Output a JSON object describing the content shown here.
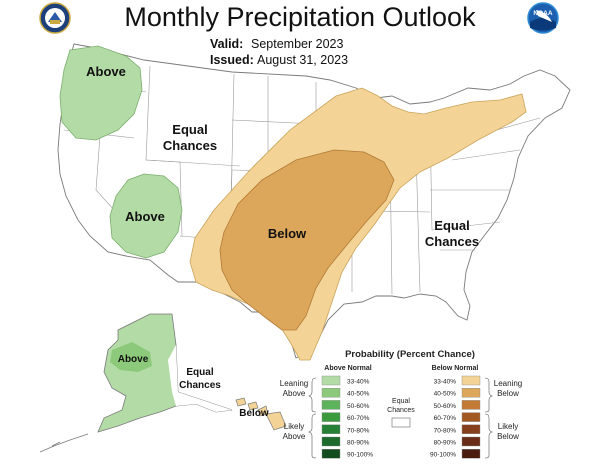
{
  "title": "Monthly Precipitation Outlook",
  "valid_label": "Valid:",
  "valid_value": "September 2023",
  "issued_label": "Issued:",
  "issued_value": "August 31, 2023",
  "logos": {
    "left": "commerce-seal-icon",
    "right": "noaa-logo-icon",
    "noaa_text": "NOAA"
  },
  "regions": [
    {
      "label": "Above"
    },
    {
      "label": "Equal Chances"
    },
    {
      "label": "Above"
    },
    {
      "label": "Below"
    },
    {
      "label": "Equal Chances"
    },
    {
      "label": "Above"
    },
    {
      "label": "Equal Chances"
    },
    {
      "label": "Below"
    }
  ],
  "legend": {
    "title": "Probability (Percent Chance)",
    "above_header": "Above Normal",
    "below_header": "Below Normal",
    "equal_label": [
      "Equal",
      "Chances"
    ],
    "leaning_above": [
      "Leaning",
      "Above"
    ],
    "likely_above": [
      "Likely",
      "Above"
    ],
    "leaning_below": [
      "Leaning",
      "Below"
    ],
    "likely_below": [
      "Likely",
      "Below"
    ],
    "above_bins": [
      {
        "range": "33-40%",
        "color": "#b3dba6"
      },
      {
        "range": "40-50%",
        "color": "#8cc97b"
      },
      {
        "range": "50-60%",
        "color": "#5db35a"
      },
      {
        "range": "60-70%",
        "color": "#3c9a3e"
      },
      {
        "range": "70-80%",
        "color": "#268035"
      },
      {
        "range": "80-90%",
        "color": "#1c6a2c"
      },
      {
        "range": "90-100%",
        "color": "#134d1f"
      }
    ],
    "below_bins": [
      {
        "range": "33-40%",
        "color": "#f4d496"
      },
      {
        "range": "40-50%",
        "color": "#dda75b"
      },
      {
        "range": "50-60%",
        "color": "#c27a34"
      },
      {
        "range": "60-70%",
        "color": "#a35a22"
      },
      {
        "range": "70-80%",
        "color": "#853f1c"
      },
      {
        "range": "80-90%",
        "color": "#6b2c17"
      },
      {
        "range": "90-100%",
        "color": "#4a1c10"
      }
    ]
  }
}
